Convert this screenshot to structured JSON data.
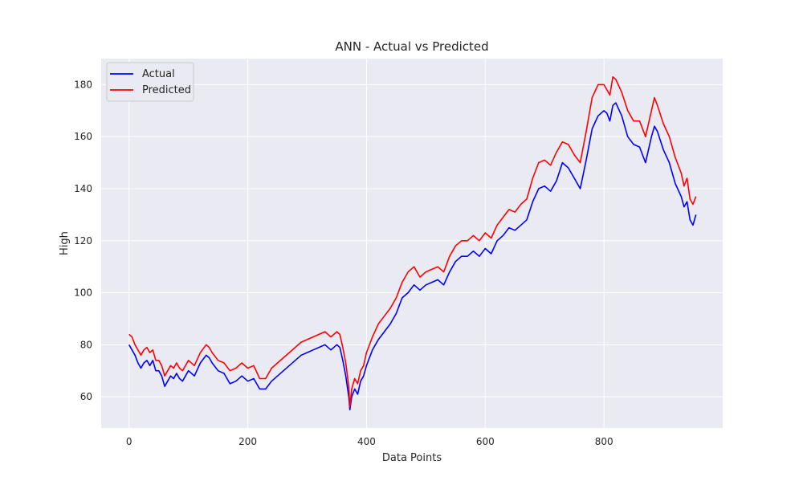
{
  "colors": {
    "background": "#ffffff",
    "plot_background": "#eaeaf2",
    "grid": "#ffffff",
    "actual": "#0000ff",
    "predicted": "#ff0000"
  },
  "chart_data": {
    "type": "line",
    "title": "ANN - Actual vs Predicted",
    "xlabel": "Data Points",
    "ylabel": "High",
    "xlim": [
      -47,
      1000
    ],
    "ylim": [
      48,
      190
    ],
    "xticks": [
      0,
      200,
      400,
      600,
      800
    ],
    "yticks": [
      60,
      80,
      100,
      120,
      140,
      160,
      180
    ],
    "grid": true,
    "legend_position": "upper-left",
    "legend": [
      "Actual",
      "Predicted"
    ],
    "series": [
      {
        "name": "Actual",
        "color": "#0000ff",
        "x": [
          0,
          5,
          10,
          15,
          20,
          25,
          30,
          35,
          40,
          45,
          50,
          55,
          60,
          65,
          70,
          75,
          80,
          85,
          90,
          95,
          100,
          110,
          120,
          130,
          135,
          140,
          150,
          160,
          170,
          180,
          190,
          200,
          210,
          220,
          230,
          240,
          250,
          260,
          270,
          280,
          290,
          300,
          310,
          320,
          330,
          340,
          350,
          355,
          360,
          365,
          370,
          372,
          375,
          380,
          385,
          390,
          395,
          400,
          410,
          420,
          430,
          440,
          450,
          460,
          470,
          480,
          490,
          500,
          510,
          520,
          530,
          540,
          550,
          560,
          570,
          580,
          590,
          600,
          610,
          620,
          630,
          640,
          650,
          660,
          670,
          680,
          690,
          700,
          710,
          720,
          730,
          740,
          750,
          760,
          770,
          780,
          790,
          800,
          805,
          810,
          815,
          820,
          830,
          840,
          850,
          860,
          870,
          880,
          885,
          890,
          900,
          910,
          920,
          930,
          935,
          940,
          945,
          950,
          955
        ],
        "y": [
          80,
          78,
          76,
          73,
          71,
          73,
          74,
          72,
          74,
          70,
          70,
          68,
          64,
          66,
          68,
          67,
          69,
          67,
          66,
          68,
          70,
          68,
          73,
          76,
          75,
          73,
          70,
          69,
          65,
          66,
          68,
          66,
          67,
          63,
          63,
          66,
          68,
          70,
          72,
          74,
          76,
          77,
          78,
          79,
          80,
          78,
          80,
          79,
          74,
          68,
          60,
          55,
          60,
          63,
          61,
          66,
          68,
          72,
          78,
          82,
          85,
          88,
          92,
          98,
          100,
          103,
          101,
          103,
          104,
          105,
          103,
          108,
          112,
          114,
          114,
          116,
          114,
          117,
          115,
          120,
          122,
          125,
          124,
          126,
          128,
          135,
          140,
          141,
          139,
          143,
          150,
          148,
          144,
          140,
          151,
          163,
          168,
          170,
          169,
          166,
          172,
          173,
          168,
          160,
          157,
          156,
          150,
          160,
          164,
          162,
          155,
          150,
          142,
          137,
          133,
          135,
          128,
          126,
          130
        ]
      },
      {
        "name": "Predicted",
        "color": "#ff0000",
        "x": [
          0,
          5,
          10,
          15,
          20,
          25,
          30,
          35,
          40,
          45,
          50,
          55,
          60,
          65,
          70,
          75,
          80,
          85,
          90,
          95,
          100,
          110,
          120,
          130,
          135,
          140,
          150,
          160,
          170,
          180,
          190,
          200,
          210,
          220,
          230,
          240,
          250,
          260,
          270,
          280,
          290,
          300,
          310,
          320,
          330,
          340,
          350,
          355,
          360,
          365,
          370,
          372,
          375,
          380,
          385,
          390,
          395,
          400,
          410,
          420,
          430,
          440,
          450,
          460,
          470,
          480,
          490,
          500,
          510,
          520,
          530,
          540,
          550,
          560,
          570,
          580,
          590,
          600,
          610,
          620,
          630,
          640,
          650,
          660,
          670,
          680,
          690,
          700,
          710,
          720,
          730,
          740,
          750,
          760,
          770,
          780,
          790,
          800,
          805,
          810,
          815,
          820,
          830,
          840,
          850,
          860,
          870,
          880,
          885,
          890,
          900,
          910,
          920,
          930,
          935,
          940,
          945,
          950,
          955
        ],
        "y": [
          84,
          83,
          80,
          78,
          76,
          78,
          79,
          77,
          78,
          74,
          74,
          72,
          68,
          70,
          72,
          71,
          73,
          71,
          70,
          72,
          74,
          72,
          77,
          80,
          79,
          77,
          74,
          73,
          70,
          71,
          73,
          71,
          72,
          67,
          67,
          71,
          73,
          75,
          77,
          79,
          81,
          82,
          83,
          84,
          85,
          83,
          85,
          84,
          79,
          73,
          64,
          56,
          63,
          67,
          65,
          70,
          72,
          77,
          83,
          88,
          91,
          94,
          98,
          104,
          108,
          110,
          106,
          108,
          109,
          110,
          108,
          114,
          118,
          120,
          120,
          122,
          120,
          123,
          121,
          126,
          129,
          132,
          131,
          134,
          136,
          144,
          150,
          151,
          149,
          154,
          158,
          157,
          153,
          150,
          162,
          175,
          180,
          180,
          178,
          176,
          183,
          182,
          177,
          170,
          166,
          166,
          160,
          170,
          175,
          172,
          165,
          160,
          152,
          146,
          141,
          144,
          136,
          134,
          137
        ]
      }
    ]
  }
}
